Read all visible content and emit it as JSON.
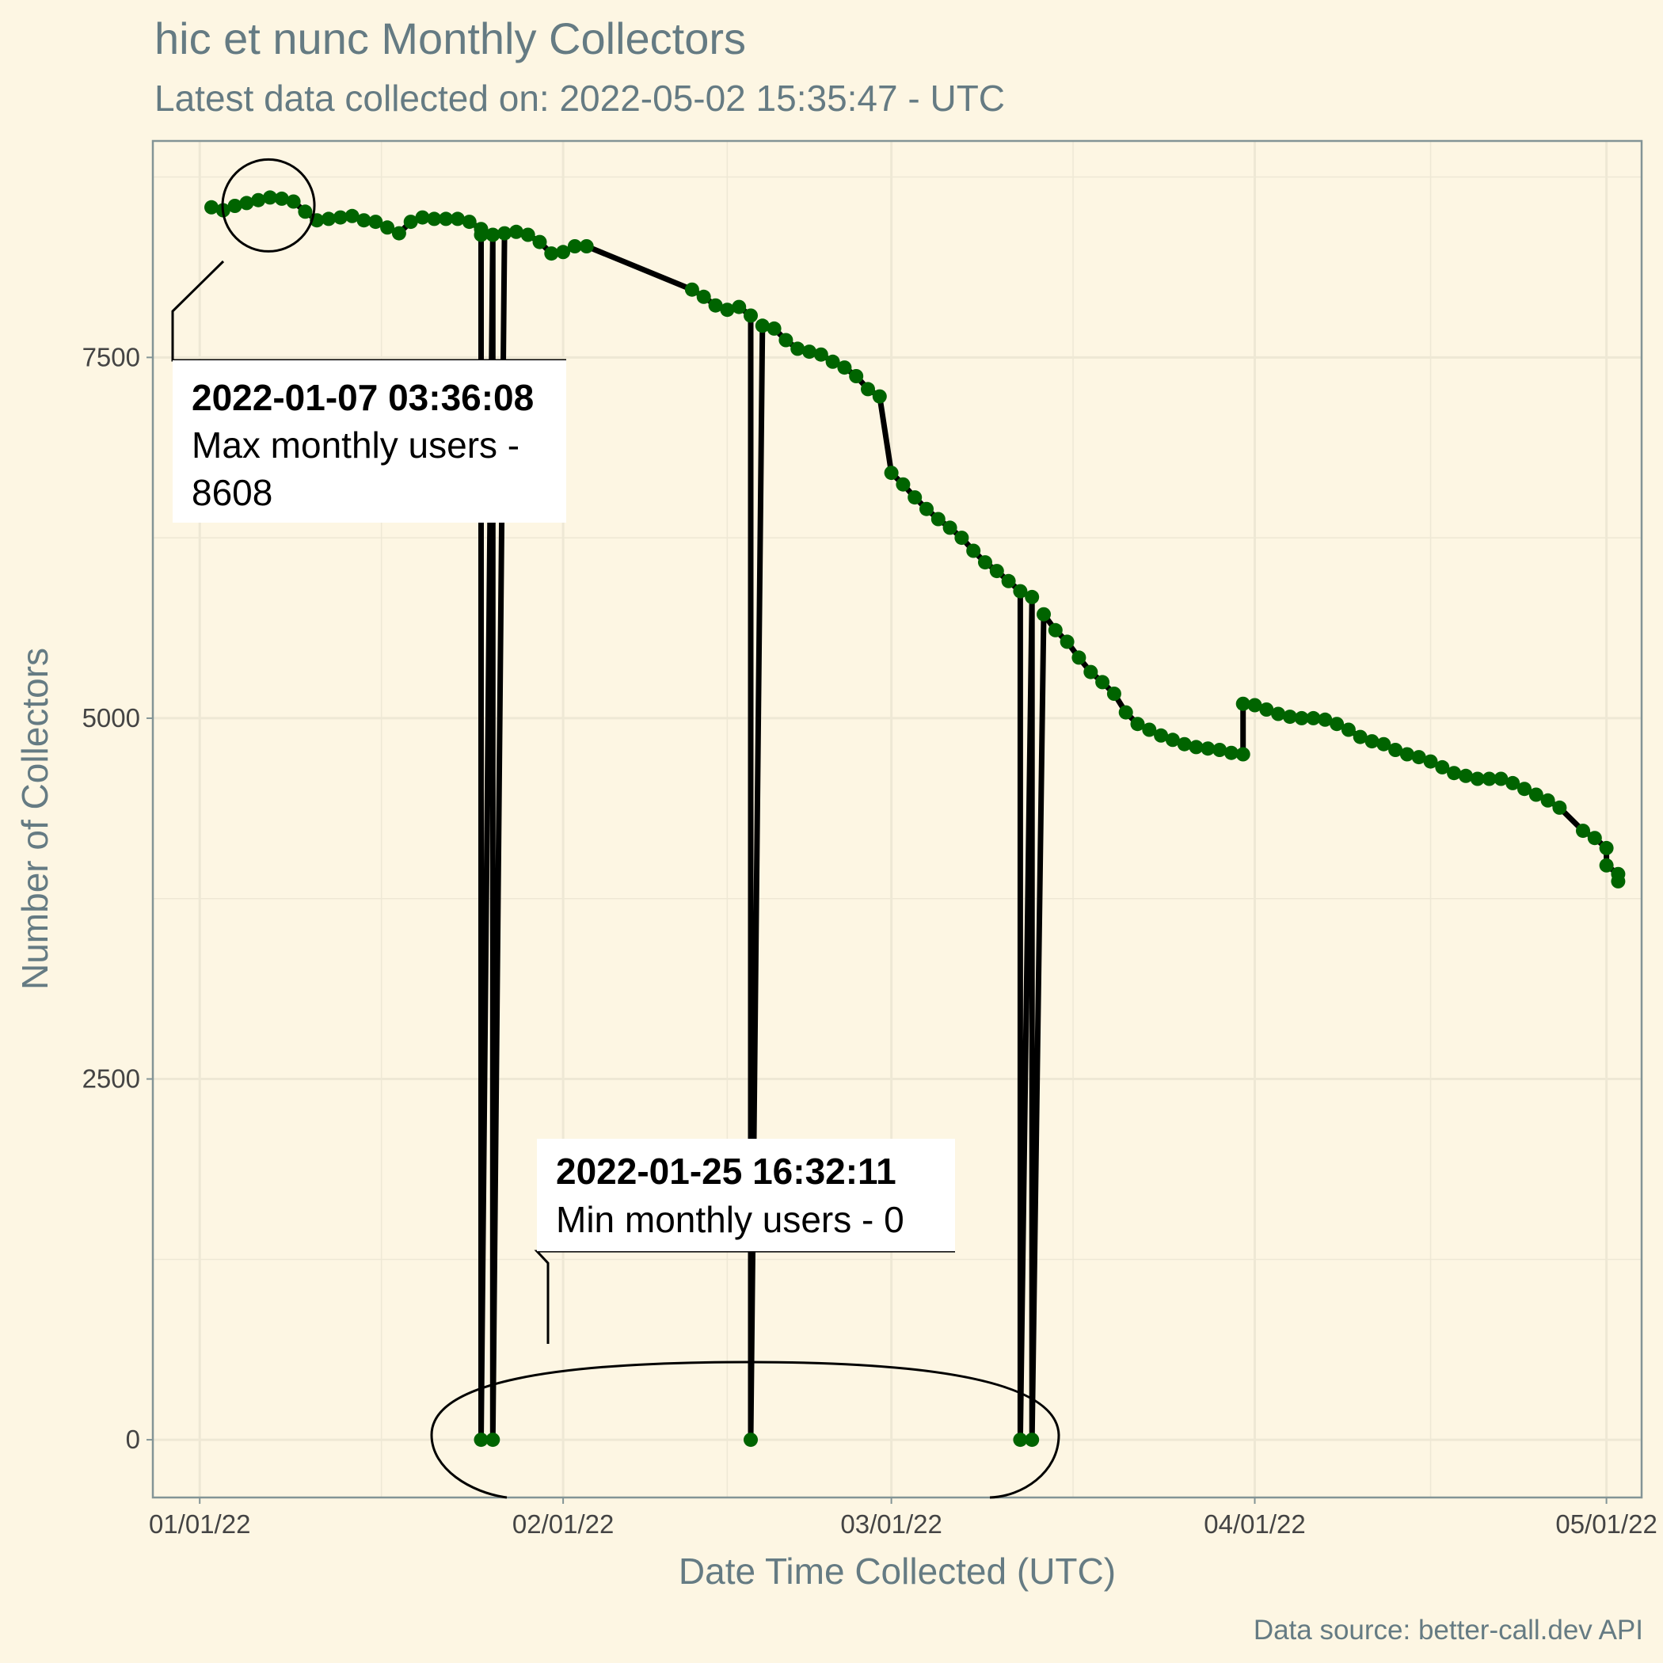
{
  "chart_data": {
    "type": "line",
    "title": "hic et nunc Monthly Collectors",
    "subtitle": "Latest data collected on: 2022-05-02 15:35:47  - UTC",
    "xlabel": "Date Time Collected (UTC)",
    "ylabel": "Number of Collectors",
    "caption": "Data source: better-call.dev API",
    "xlim": [
      "2021-12-28",
      "2022-05-04"
    ],
    "ylim": [
      -400,
      9000
    ],
    "x_ticks": [
      {
        "date": "2022-01-01",
        "label": "01/01/22"
      },
      {
        "date": "2022-02-01",
        "label": "02/01/22"
      },
      {
        "date": "2022-03-01",
        "label": "03/01/22"
      },
      {
        "date": "2022-04-01",
        "label": "04/01/22"
      },
      {
        "date": "2022-05-01",
        "label": "05/01/22"
      }
    ],
    "y_ticks": [
      {
        "value": 0,
        "label": "0"
      },
      {
        "value": 2500,
        "label": "2500"
      },
      {
        "value": 5000,
        "label": "5000"
      },
      {
        "value": 7500,
        "label": "7500"
      }
    ],
    "grid": true,
    "line_color": "#000000",
    "point_color": "#006400",
    "series": [
      {
        "points": [
          [
            "2022-01-02",
            8540
          ],
          [
            "2022-01-03",
            8520
          ],
          [
            "2022-01-04",
            8550
          ],
          [
            "2022-01-05",
            8570
          ],
          [
            "2022-01-06",
            8590
          ],
          [
            "2022-01-07",
            8608
          ],
          [
            "2022-01-08",
            8600
          ],
          [
            "2022-01-09",
            8580
          ],
          [
            "2022-01-10",
            8510
          ],
          [
            "2022-01-11",
            8450
          ],
          [
            "2022-01-12",
            8460
          ],
          [
            "2022-01-13",
            8470
          ],
          [
            "2022-01-14",
            8480
          ],
          [
            "2022-01-15",
            8450
          ],
          [
            "2022-01-16",
            8440
          ],
          [
            "2022-01-17",
            8400
          ],
          [
            "2022-01-18",
            8360
          ],
          [
            "2022-01-19",
            8440
          ],
          [
            "2022-01-20",
            8470
          ],
          [
            "2022-01-21",
            8460
          ],
          [
            "2022-01-22",
            8460
          ],
          [
            "2022-01-23",
            8460
          ],
          [
            "2022-01-24",
            8440
          ],
          [
            "2022-01-25",
            8390
          ],
          [
            "2022-01-25",
            8350
          ],
          [
            "2022-01-25",
            0
          ],
          [
            "2022-01-26",
            8350
          ],
          [
            "2022-01-26",
            0
          ],
          [
            "2022-01-27",
            8360
          ],
          [
            "2022-01-28",
            8370
          ],
          [
            "2022-01-29",
            8350
          ],
          [
            "2022-01-30",
            8300
          ],
          [
            "2022-01-31",
            8220
          ],
          [
            "2022-02-01",
            8230
          ],
          [
            "2022-02-02",
            8270
          ],
          [
            "2022-02-03",
            8270
          ],
          [
            "2022-02-12",
            7970
          ],
          [
            "2022-02-13",
            7920
          ],
          [
            "2022-02-14",
            7860
          ],
          [
            "2022-02-15",
            7830
          ],
          [
            "2022-02-16",
            7850
          ],
          [
            "2022-02-17",
            7790
          ],
          [
            "2022-02-17",
            0
          ],
          [
            "2022-02-18",
            7720
          ],
          [
            "2022-02-19",
            7700
          ],
          [
            "2022-02-20",
            7620
          ],
          [
            "2022-02-21",
            7560
          ],
          [
            "2022-02-22",
            7540
          ],
          [
            "2022-02-23",
            7520
          ],
          [
            "2022-02-24",
            7470
          ],
          [
            "2022-02-25",
            7430
          ],
          [
            "2022-02-26",
            7370
          ],
          [
            "2022-02-27",
            7280
          ],
          [
            "2022-02-28",
            7230
          ],
          [
            "2022-03-01",
            6700
          ],
          [
            "2022-03-02",
            6620
          ],
          [
            "2022-03-03",
            6530
          ],
          [
            "2022-03-04",
            6450
          ],
          [
            "2022-03-05",
            6380
          ],
          [
            "2022-03-06",
            6320
          ],
          [
            "2022-03-07",
            6250
          ],
          [
            "2022-03-08",
            6160
          ],
          [
            "2022-03-09",
            6080
          ],
          [
            "2022-03-10",
            6020
          ],
          [
            "2022-03-11",
            5950
          ],
          [
            "2022-03-12",
            5880
          ],
          [
            "2022-03-12",
            0
          ],
          [
            "2022-03-13",
            5840
          ],
          [
            "2022-03-13",
            0
          ],
          [
            "2022-03-14",
            5720
          ],
          [
            "2022-03-15",
            5610
          ],
          [
            "2022-03-16",
            5530
          ],
          [
            "2022-03-17",
            5420
          ],
          [
            "2022-03-18",
            5320
          ],
          [
            "2022-03-19",
            5250
          ],
          [
            "2022-03-20",
            5170
          ],
          [
            "2022-03-21",
            5040
          ],
          [
            "2022-03-22",
            4960
          ],
          [
            "2022-03-23",
            4920
          ],
          [
            "2022-03-24",
            4880
          ],
          [
            "2022-03-25",
            4850
          ],
          [
            "2022-03-26",
            4820
          ],
          [
            "2022-03-27",
            4800
          ],
          [
            "2022-03-28",
            4790
          ],
          [
            "2022-03-29",
            4780
          ],
          [
            "2022-03-30",
            4760
          ],
          [
            "2022-03-31",
            4750
          ],
          [
            "2022-03-31",
            5100
          ],
          [
            "2022-04-01",
            5090
          ],
          [
            "2022-04-02",
            5060
          ],
          [
            "2022-04-03",
            5030
          ],
          [
            "2022-04-04",
            5010
          ],
          [
            "2022-04-05",
            5000
          ],
          [
            "2022-04-06",
            5000
          ],
          [
            "2022-04-07",
            4990
          ],
          [
            "2022-04-08",
            4960
          ],
          [
            "2022-04-09",
            4920
          ],
          [
            "2022-04-10",
            4870
          ],
          [
            "2022-04-11",
            4840
          ],
          [
            "2022-04-12",
            4820
          ],
          [
            "2022-04-13",
            4780
          ],
          [
            "2022-04-14",
            4750
          ],
          [
            "2022-04-15",
            4730
          ],
          [
            "2022-04-16",
            4700
          ],
          [
            "2022-04-17",
            4660
          ],
          [
            "2022-04-18",
            4620
          ],
          [
            "2022-04-19",
            4600
          ],
          [
            "2022-04-20",
            4580
          ],
          [
            "2022-04-21",
            4580
          ],
          [
            "2022-04-22",
            4580
          ],
          [
            "2022-04-23",
            4550
          ],
          [
            "2022-04-24",
            4510
          ],
          [
            "2022-04-25",
            4470
          ],
          [
            "2022-04-26",
            4430
          ],
          [
            "2022-04-27",
            4380
          ],
          [
            "2022-04-29",
            4220
          ],
          [
            "2022-04-30",
            4170
          ],
          [
            "2022-05-01",
            4100
          ],
          [
            "2022-05-01",
            3980
          ],
          [
            "2022-05-02",
            3920
          ],
          [
            "2022-05-02",
            3870
          ]
        ]
      }
    ],
    "annotations": [
      {
        "title": "2022-01-07 03:36:08",
        "text_lines": [
          "Max monthly users -",
          "8608"
        ]
      },
      {
        "title": "2022-01-25 16:32:11",
        "text_lines": [
          "Min monthly users - 0"
        ]
      }
    ]
  }
}
